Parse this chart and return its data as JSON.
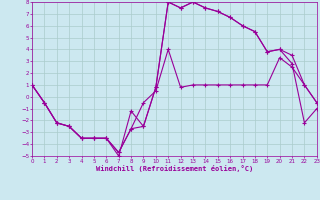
{
  "bg_color": "#cce8f0",
  "grid_color": "#aacccc",
  "line_color": "#990099",
  "xlabel": "Windchill (Refroidissement éolien,°C)",
  "xlim": [
    0,
    23
  ],
  "ylim": [
    -5,
    8
  ],
  "xticks": [
    0,
    1,
    2,
    3,
    4,
    5,
    6,
    7,
    8,
    9,
    10,
    11,
    12,
    13,
    14,
    15,
    16,
    17,
    18,
    19,
    20,
    21,
    22,
    23
  ],
  "yticks": [
    -5,
    -4,
    -3,
    -2,
    -1,
    0,
    1,
    2,
    3,
    4,
    5,
    6,
    7,
    8
  ],
  "line1_x": [
    0,
    1,
    2,
    3,
    4,
    5,
    6,
    7,
    8,
    9,
    10,
    11,
    12,
    13,
    14,
    15,
    16,
    17,
    18,
    19,
    20,
    21,
    22,
    23
  ],
  "line1_y": [
    1.0,
    -0.5,
    -2.2,
    -2.5,
    -3.5,
    -3.5,
    -3.5,
    -5.0,
    -1.2,
    -2.5,
    0.8,
    8.0,
    7.5,
    8.0,
    7.5,
    7.2,
    6.7,
    6.0,
    5.5,
    3.8,
    4.0,
    3.5,
    1.0,
    -0.5
  ],
  "line2_x": [
    0,
    1,
    2,
    3,
    4,
    5,
    6,
    7,
    8,
    9,
    10,
    11,
    12,
    13,
    14,
    15,
    16,
    17,
    18,
    19,
    20,
    21,
    22,
    23
  ],
  "line2_y": [
    1.0,
    -0.5,
    -2.2,
    -2.5,
    -3.5,
    -3.5,
    -3.5,
    -4.7,
    -2.7,
    -0.5,
    0.5,
    4.0,
    0.8,
    1.0,
    1.0,
    1.0,
    1.0,
    1.0,
    1.0,
    1.0,
    3.3,
    2.5,
    1.0,
    -0.5
  ],
  "line3_x": [
    0,
    1,
    2,
    3,
    4,
    5,
    6,
    7,
    8,
    9,
    10,
    11,
    12,
    13,
    14,
    15,
    16,
    17,
    18,
    19,
    20,
    21,
    22,
    23
  ],
  "line3_y": [
    1.0,
    -0.5,
    -2.2,
    -2.5,
    -3.5,
    -3.5,
    -3.5,
    -4.7,
    -2.7,
    -2.5,
    0.8,
    8.0,
    7.5,
    8.0,
    7.5,
    7.2,
    6.7,
    6.0,
    5.5,
    3.8,
    4.0,
    2.8,
    -2.2,
    -1.0
  ]
}
